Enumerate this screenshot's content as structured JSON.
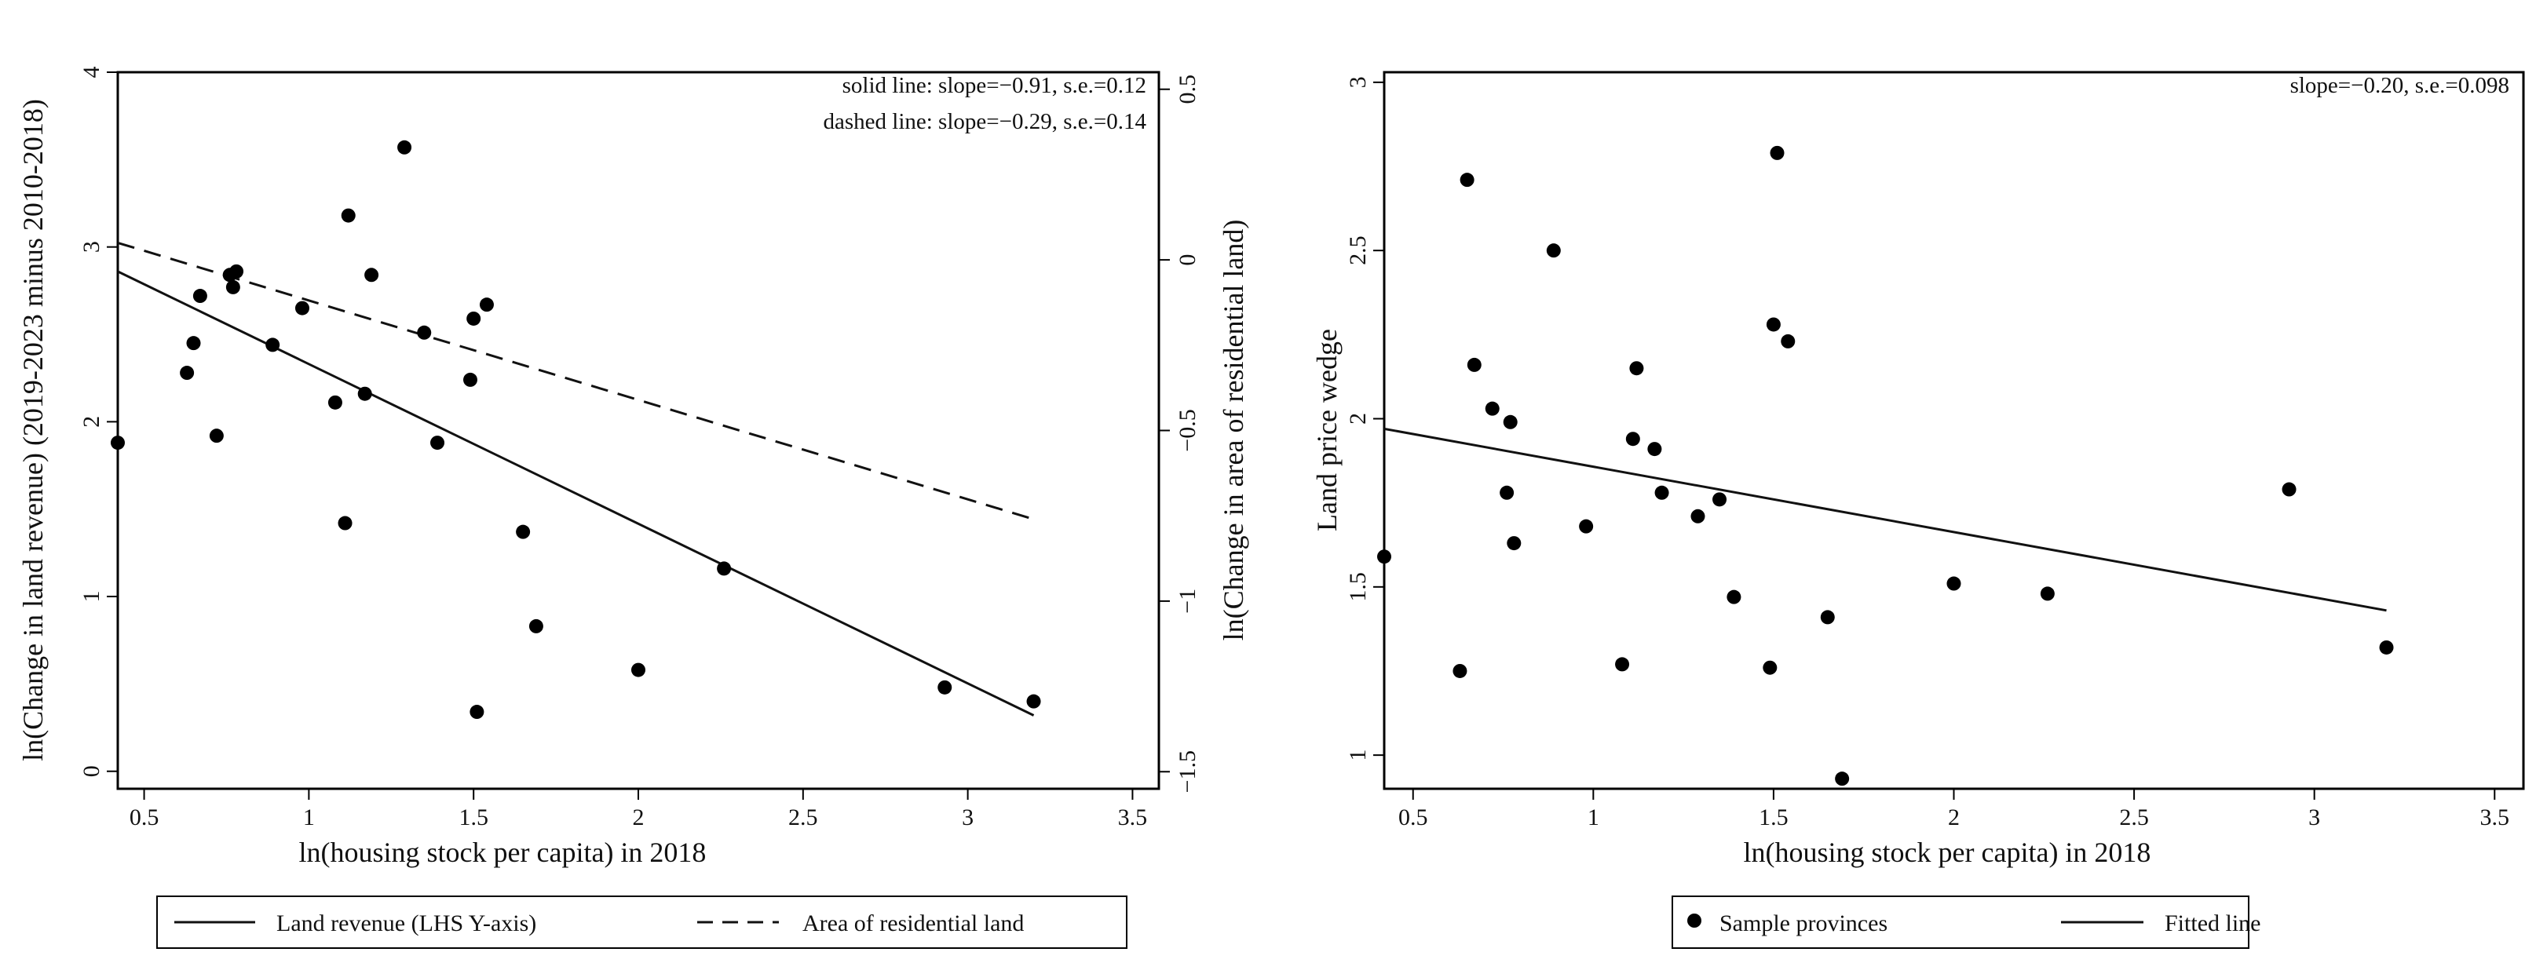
{
  "chart_data": [
    {
      "type": "scatter",
      "xlabel": "ln(housing stock per capita) in 2018",
      "ylabel": "ln(Change in land revenue) (2019-2023 minus 2010-2018)",
      "y2label": "ln(Change in area of residential land)",
      "xlim": [
        0.42,
        3.58
      ],
      "ylim": [
        -0.1,
        4.0
      ],
      "y2lim": [
        -1.55,
        0.55
      ],
      "xticks": [
        0.5,
        1,
        1.5,
        2,
        2.5,
        3,
        3.5
      ],
      "yticks": [
        0,
        1,
        2,
        3,
        4
      ],
      "y2ticks": [
        -1.5,
        -1,
        -0.5,
        0,
        0.5
      ],
      "xtick_labels": [
        "0.5",
        "1",
        "1.5",
        "2",
        "2.5",
        "3",
        "3.5"
      ],
      "ytick_labels": [
        "0",
        "1",
        "2",
        "3",
        "4"
      ],
      "y2tick_labels": [
        "−1.5",
        "−1",
        "−0.5",
        "0",
        "0.5"
      ],
      "annotations": [
        "solid line: slope=−0.91, s.e.=0.12",
        "dashed line: slope=−0.29, s.e.=0.14"
      ],
      "legend_position": "bottom",
      "legend": [
        "Land revenue (LHS Y-axis)",
        "Area of residential land"
      ],
      "points": {
        "x": [
          0.42,
          0.63,
          0.65,
          0.67,
          0.72,
          0.76,
          0.77,
          0.78,
          0.89,
          0.98,
          1.08,
          1.11,
          1.12,
          1.17,
          1.19,
          1.29,
          1.35,
          1.39,
          1.49,
          1.5,
          1.51,
          1.54,
          1.65,
          1.69,
          2.0,
          2.26,
          2.93,
          3.2
        ],
        "y": [
          1.88,
          2.28,
          2.45,
          2.72,
          1.92,
          2.84,
          2.77,
          2.86,
          2.44,
          2.65,
          2.11,
          1.42,
          3.18,
          2.16,
          2.84,
          3.57,
          2.51,
          1.88,
          2.24,
          2.59,
          0.34,
          2.67,
          1.37,
          0.83,
          0.58,
          1.16,
          0.48,
          0.4
        ]
      },
      "lines": [
        {
          "name": "Land revenue (LHS Y-axis)",
          "style": "solid",
          "axis": "left",
          "x": [
            0.42,
            3.2
          ],
          "y": [
            2.86,
            0.32
          ]
        },
        {
          "name": "Area of residential land",
          "style": "dashed",
          "axis": "right",
          "x": [
            0.42,
            3.2
          ],
          "y": [
            0.05,
            -0.76
          ]
        }
      ]
    },
    {
      "type": "scatter",
      "xlabel": "ln(housing stock per capita) in 2018",
      "ylabel": "Land price wedge",
      "xlim": [
        0.42,
        3.58
      ],
      "ylim": [
        0.9,
        3.03
      ],
      "xticks": [
        0.5,
        1,
        1.5,
        2,
        2.5,
        3,
        3.5
      ],
      "yticks": [
        1,
        1.5,
        2,
        2.5,
        3
      ],
      "xtick_labels": [
        "0.5",
        "1",
        "1.5",
        "2",
        "2.5",
        "3",
        "3.5"
      ],
      "ytick_labels": [
        "1",
        "1.5",
        "2",
        "2.5",
        "3"
      ],
      "annotations": [
        "slope=−0.20, s.e.=0.098"
      ],
      "legend_position": "bottom",
      "legend": [
        "Sample provinces",
        "Fitted line"
      ],
      "points": {
        "x": [
          0.42,
          0.63,
          0.65,
          0.67,
          0.72,
          0.76,
          0.77,
          0.78,
          0.89,
          0.98,
          1.08,
          1.11,
          1.12,
          1.17,
          1.19,
          1.29,
          1.35,
          1.39,
          1.49,
          1.5,
          1.51,
          1.54,
          1.65,
          1.69,
          2.0,
          2.26,
          2.93,
          3.2
        ],
        "y": [
          1.59,
          1.25,
          2.71,
          2.16,
          2.03,
          1.78,
          1.99,
          1.63,
          2.5,
          1.68,
          1.27,
          1.94,
          2.15,
          1.91,
          1.78,
          1.71,
          1.76,
          1.47,
          1.26,
          2.28,
          2.79,
          2.23,
          1.41,
          0.93,
          1.51,
          1.48,
          1.79,
          1.32
        ]
      },
      "lines": [
        {
          "name": "Fitted line",
          "style": "solid",
          "x": [
            0.42,
            3.2
          ],
          "y": [
            1.97,
            1.43
          ]
        }
      ]
    }
  ]
}
